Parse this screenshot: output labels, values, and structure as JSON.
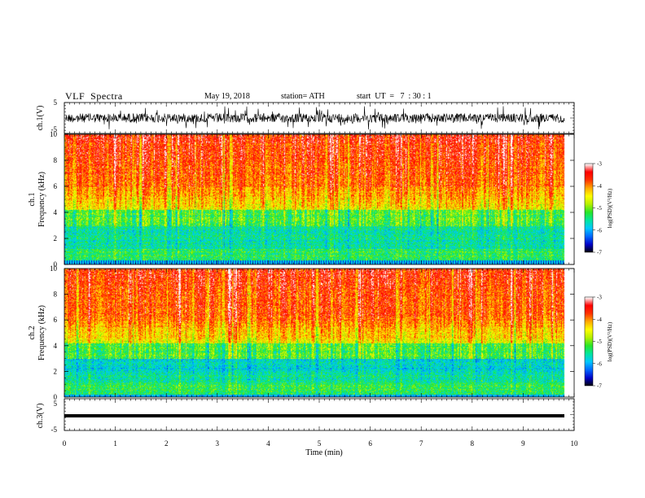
{
  "header": {
    "title": "VLF  Spectra",
    "date": "May 19, 2018",
    "station": "station= ATH",
    "start": "start  UT  =   7  : 30 : 1"
  },
  "chart_data": [
    {
      "type": "line",
      "name": "ch1-waveform",
      "ylabel": "ch.1(V)",
      "ylim": [
        -5,
        5
      ],
      "yticks": [
        "5",
        "-5"
      ],
      "xlim": [
        0,
        10
      ]
    },
    {
      "type": "heatmap",
      "name": "ch1-spectrogram",
      "ylabel": "ch.1\nFrequency  (kHz)",
      "ylim": [
        0,
        10
      ],
      "yticks": [
        "0",
        "2",
        "4",
        "6",
        "8",
        "10"
      ],
      "xlim": [
        0,
        10
      ],
      "colorbar": {
        "label": "log(PSD)(V²/Hz)",
        "min": -7,
        "max": -3,
        "ticks": [
          "-3",
          "-4",
          "-5",
          "-6",
          "-7"
        ]
      }
    },
    {
      "type": "heatmap",
      "name": "ch2-spectrogram",
      "ylabel": "ch.2\nFrequency  (kHz)",
      "ylim": [
        0,
        10
      ],
      "yticks": [
        "0",
        "2",
        "4",
        "6",
        "8",
        "10"
      ],
      "xlim": [
        0,
        10
      ],
      "colorbar": {
        "label": "log(PSD)(V²/Hz)",
        "min": -7,
        "max": -3,
        "ticks": [
          "-3",
          "-4",
          "-5",
          "-6",
          "-7"
        ]
      }
    },
    {
      "type": "line",
      "name": "ch3-waveform",
      "ylabel": "ch.3(V)",
      "ylim": [
        -5,
        5
      ],
      "yticks": [
        "5",
        "-5"
      ],
      "xlim": [
        0,
        10
      ],
      "xlabel": "Time  (min)",
      "xticks": [
        "0",
        "1",
        "2",
        "3",
        "4",
        "5",
        "6",
        "7",
        "8",
        "9",
        "10"
      ]
    }
  ],
  "colors": {
    "scale": [
      "#000000",
      "#0000c8",
      "#0066ff",
      "#00c8ff",
      "#00e6a0",
      "#28e628",
      "#b4f000",
      "#ffff00",
      "#ffaa00",
      "#ff3300",
      "#ff0000",
      "#ffffff"
    ],
    "trace": "#000000"
  }
}
